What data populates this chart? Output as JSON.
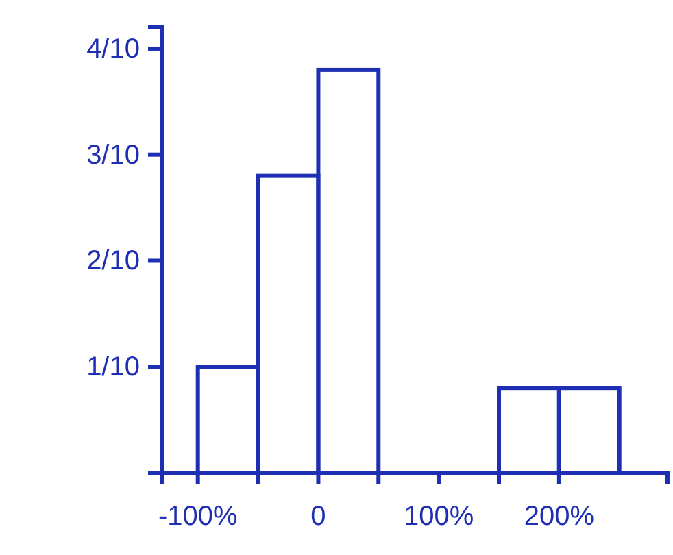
{
  "chart_data": {
    "type": "histogram",
    "bins": [
      -100,
      -50,
      0,
      50,
      100,
      150,
      200,
      250
    ],
    "values": [
      0.1,
      0.28,
      0.38,
      0,
      0,
      0.08,
      0.08
    ],
    "color": "#1f2fb4",
    "xlim": [
      -130,
      290
    ],
    "xticks": [
      {
        "value": -100,
        "label": "-100%"
      },
      {
        "value": -50,
        "label": null
      },
      {
        "value": 0,
        "label": "0"
      },
      {
        "value": 50,
        "label": null
      },
      {
        "value": 100,
        "label": "100%"
      },
      {
        "value": 150,
        "label": null
      },
      {
        "value": 200,
        "label": "200%"
      }
    ],
    "ylim": [
      0,
      0.42
    ],
    "yticks": [
      {
        "value": 0.1,
        "label": "1/10"
      },
      {
        "value": 0.2,
        "label": "2/10"
      },
      {
        "value": 0.3,
        "label": "3/10"
      },
      {
        "value": 0.4,
        "label": "4/10"
      }
    ],
    "grid": false
  }
}
